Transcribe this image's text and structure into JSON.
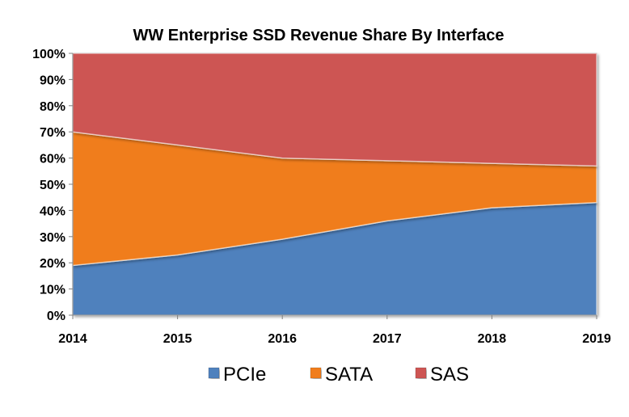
{
  "chart_data": {
    "type": "area",
    "stacked": true,
    "title": "WW Enterprise SSD Revenue Share By Interface",
    "x": [
      "2014",
      "2015",
      "2016",
      "2017",
      "2018",
      "2019"
    ],
    "series": [
      {
        "name": "PCIe",
        "color": "#4f81bd",
        "values": [
          19,
          23,
          29,
          36,
          41,
          43
        ]
      },
      {
        "name": "SATA",
        "color": "#f07d1a",
        "values": [
          51,
          42,
          31,
          23,
          17,
          14
        ]
      },
      {
        "name": "SAS",
        "color": "#cd5553",
        "values": [
          30,
          35,
          40,
          41,
          42,
          43
        ]
      }
    ],
    "ylim": [
      0,
      100
    ],
    "yticks": [
      "0%",
      "10%",
      "20%",
      "30%",
      "40%",
      "50%",
      "60%",
      "70%",
      "80%",
      "90%",
      "100%"
    ],
    "legend_position": "bottom",
    "grid": false
  }
}
